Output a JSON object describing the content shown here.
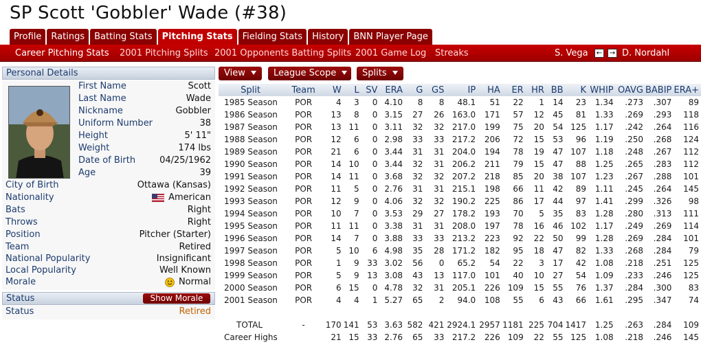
{
  "title": "SP Scott 'Gobbler' Wade (#38)",
  "tabs": [
    "Profile",
    "Ratings",
    "Batting Stats",
    "Pitching Stats",
    "Fielding Stats",
    "History",
    "BNN Player Page"
  ],
  "subtabs": [
    "Career Pitching Stats",
    "2001 Pitching Splits",
    "2001 Opponents Batting Splits",
    "2001 Game Log",
    "Streaks"
  ],
  "nav": {
    "prev_player": "S. Vega",
    "next_player": "D. Nordahl"
  },
  "personal": {
    "header": "Personal Details",
    "fields": [
      {
        "label": "First Name",
        "value": "Scott"
      },
      {
        "label": "Last Name",
        "value": "Wade"
      },
      {
        "label": "Nickname",
        "value": "Gobbler"
      },
      {
        "label": "Uniform Number",
        "value": "38"
      },
      {
        "label": "Height",
        "value": "5' 11\""
      },
      {
        "label": "Weight",
        "value": "174 lbs"
      },
      {
        "label": "Date of Birth",
        "value": "04/25/1962"
      },
      {
        "label": "Age",
        "value": "39"
      }
    ],
    "details": [
      {
        "label": "City of Birth",
        "value": "Ottawa (Kansas)"
      },
      {
        "label": "Nationality",
        "value": "American"
      },
      {
        "label": "Bats",
        "value": "Right"
      },
      {
        "label": "Throws",
        "value": "Right"
      },
      {
        "label": "Position",
        "value": "Pitcher (Starter)"
      },
      {
        "label": "Team",
        "value": "Retired"
      },
      {
        "label": "National Popularity",
        "value": "Insignificant"
      },
      {
        "label": "Local Popularity",
        "value": "Well Known"
      },
      {
        "label": "Morale",
        "value": "Normal"
      }
    ]
  },
  "status": {
    "header": "Status",
    "button": "Show Morale",
    "label": "Status",
    "value": "Retired"
  },
  "toolbar": {
    "view": "View",
    "league_scope": "League Scope",
    "splits": "Splits"
  },
  "stats": {
    "columns": [
      "Split",
      "Team",
      "W",
      "L",
      "SV",
      "ERA",
      "G",
      "GS",
      "IP",
      "HA",
      "ER",
      "HR",
      "BB",
      "K",
      "WHIP",
      "OAVG",
      "BABIP",
      "ERA+"
    ],
    "rows": [
      [
        "1985 Season",
        "POR",
        "4",
        "3",
        "0",
        "4.10",
        "8",
        "8",
        "48.1",
        "51",
        "22",
        "1",
        "14",
        "23",
        "1.34",
        ".273",
        ".307",
        "89"
      ],
      [
        "1986 Season",
        "POR",
        "13",
        "8",
        "0",
        "3.15",
        "27",
        "26",
        "163.0",
        "171",
        "57",
        "12",
        "45",
        "81",
        "1.33",
        ".269",
        ".293",
        "118"
      ],
      [
        "1987 Season",
        "POR",
        "13",
        "11",
        "0",
        "3.11",
        "32",
        "32",
        "217.0",
        "199",
        "75",
        "20",
        "54",
        "125",
        "1.17",
        ".242",
        ".264",
        "116"
      ],
      [
        "1988 Season",
        "POR",
        "12",
        "6",
        "0",
        "2.98",
        "33",
        "33",
        "217.2",
        "206",
        "72",
        "15",
        "53",
        "96",
        "1.19",
        ".250",
        ".268",
        "124"
      ],
      [
        "1989 Season",
        "POR",
        "21",
        "6",
        "0",
        "3.44",
        "31",
        "31",
        "204.0",
        "194",
        "78",
        "19",
        "47",
        "107",
        "1.18",
        ".248",
        ".267",
        "112"
      ],
      [
        "1990 Season",
        "POR",
        "14",
        "10",
        "0",
        "3.44",
        "32",
        "31",
        "206.2",
        "211",
        "79",
        "15",
        "47",
        "88",
        "1.25",
        ".265",
        ".283",
        "112"
      ],
      [
        "1991 Season",
        "POR",
        "14",
        "11",
        "0",
        "3.68",
        "32",
        "32",
        "207.2",
        "218",
        "85",
        "20",
        "38",
        "107",
        "1.23",
        ".267",
        ".288",
        "101"
      ],
      [
        "1992 Season",
        "POR",
        "11",
        "5",
        "0",
        "2.76",
        "31",
        "31",
        "215.1",
        "198",
        "66",
        "11",
        "42",
        "89",
        "1.11",
        ".245",
        ".264",
        "145"
      ],
      [
        "1993 Season",
        "POR",
        "12",
        "9",
        "0",
        "4.06",
        "32",
        "32",
        "190.2",
        "225",
        "86",
        "17",
        "44",
        "97",
        "1.41",
        ".299",
        ".326",
        "98"
      ],
      [
        "1994 Season",
        "POR",
        "10",
        "7",
        "0",
        "3.53",
        "29",
        "27",
        "178.2",
        "193",
        "70",
        "5",
        "35",
        "83",
        "1.28",
        ".280",
        ".313",
        "111"
      ],
      [
        "1995 Season",
        "POR",
        "11",
        "11",
        "0",
        "3.38",
        "31",
        "31",
        "208.0",
        "197",
        "78",
        "16",
        "46",
        "102",
        "1.17",
        ".249",
        ".269",
        "114"
      ],
      [
        "1996 Season",
        "POR",
        "14",
        "7",
        "0",
        "3.88",
        "33",
        "33",
        "213.2",
        "223",
        "92",
        "22",
        "50",
        "99",
        "1.28",
        ".269",
        ".284",
        "101"
      ],
      [
        "1997 Season",
        "POR",
        "5",
        "10",
        "6",
        "4.98",
        "35",
        "28",
        "171.2",
        "182",
        "95",
        "18",
        "47",
        "82",
        "1.33",
        ".268",
        ".284",
        "79"
      ],
      [
        "1998 Season",
        "POR",
        "1",
        "9",
        "33",
        "3.02",
        "56",
        "0",
        "65.2",
        "54",
        "22",
        "3",
        "17",
        "42",
        "1.08",
        ".218",
        ".251",
        "125"
      ],
      [
        "1999 Season",
        "POR",
        "5",
        "9",
        "13",
        "3.08",
        "43",
        "13",
        "117.0",
        "101",
        "40",
        "10",
        "27",
        "54",
        "1.09",
        ".233",
        ".246",
        "125"
      ],
      [
        "2000 Season",
        "POR",
        "6",
        "15",
        "0",
        "4.78",
        "32",
        "31",
        "205.1",
        "226",
        "109",
        "15",
        "55",
        "76",
        "1.37",
        ".284",
        ".300",
        "83"
      ],
      [
        "2001 Season",
        "POR",
        "4",
        "4",
        "1",
        "5.27",
        "65",
        "2",
        "94.0",
        "108",
        "55",
        "6",
        "43",
        "66",
        "1.61",
        ".295",
        ".347",
        "74"
      ]
    ],
    "total": [
      "TOTAL",
      "-",
      "170",
      "141",
      "53",
      "3.63",
      "582",
      "421",
      "2924.1",
      "2957",
      "1181",
      "225",
      "704",
      "1417",
      "1.25",
      ".263",
      ".284",
      "109"
    ],
    "highs": [
      "Career Highs",
      "",
      "21",
      "15",
      "33",
      "2.76",
      "65",
      "33",
      "217.2",
      "226",
      "109",
      "22",
      "55",
      "125",
      "1.08",
      ".218",
      ".246",
      "145"
    ]
  }
}
